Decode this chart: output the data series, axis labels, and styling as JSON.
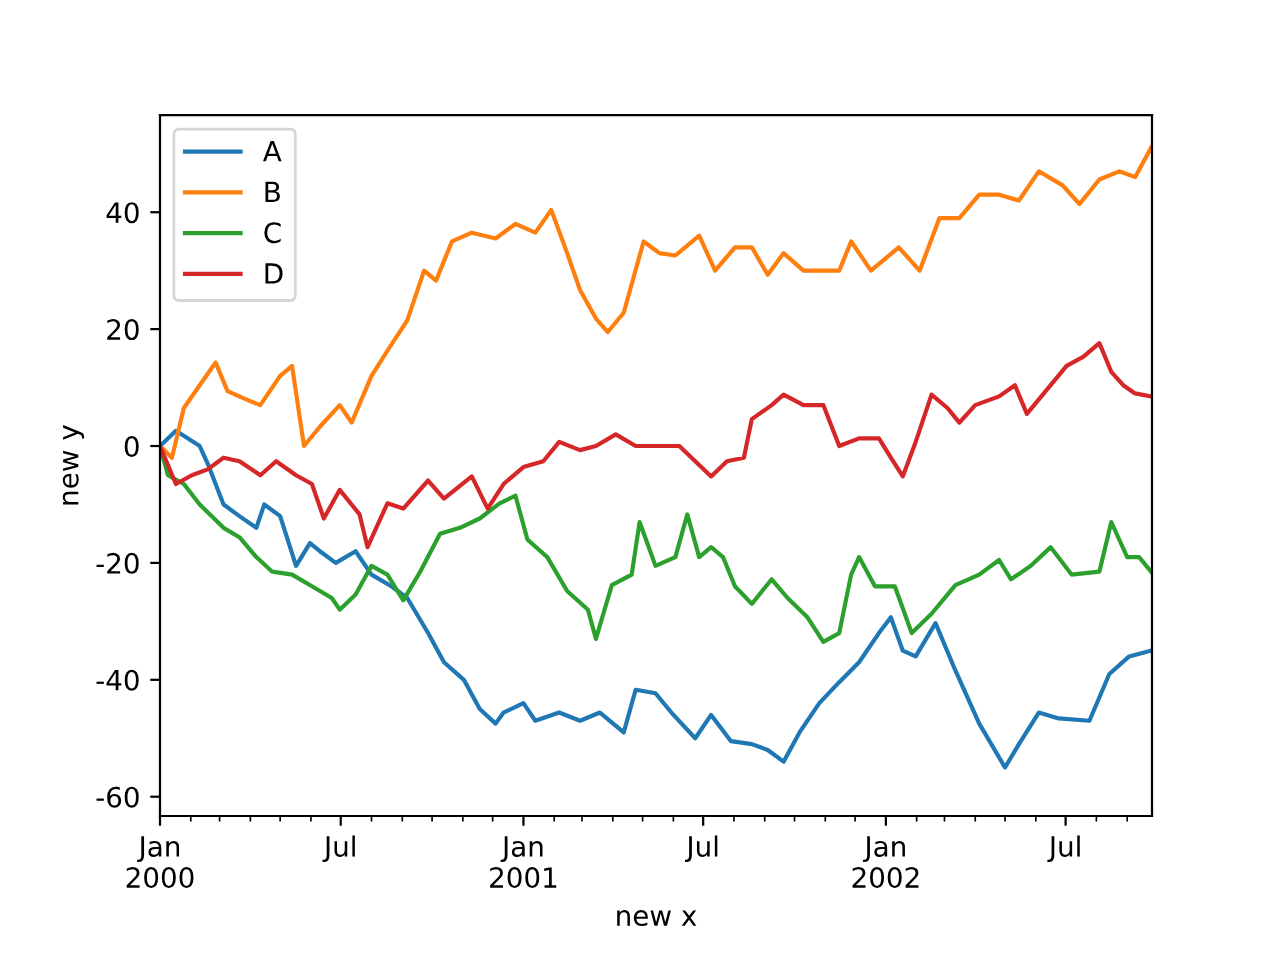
{
  "chart_data": {
    "type": "line",
    "xlabel": "new x",
    "ylabel": "new y",
    "legend": "top left",
    "grid": false,
    "xlim": [
      "2000-01-01",
      "2002-09-26"
    ],
    "ylim": [
      -63.3,
      56.6
    ],
    "yticks": [
      -60,
      -40,
      -20,
      0,
      20,
      40
    ],
    "xticks": [
      {
        "value": "2000-01-01",
        "label": "Jan\n2000"
      },
      {
        "value": "2000-02-01",
        "label": null
      },
      {
        "value": "2000-03-01",
        "label": null
      },
      {
        "value": "2000-04-01",
        "label": null
      },
      {
        "value": "2000-05-01",
        "label": null
      },
      {
        "value": "2000-06-01",
        "label": null
      },
      {
        "value": "2000-07-01",
        "label": "Jul"
      },
      {
        "value": "2000-08-01",
        "label": null
      },
      {
        "value": "2000-09-01",
        "label": null
      },
      {
        "value": "2000-10-01",
        "label": null
      },
      {
        "value": "2000-11-01",
        "label": null
      },
      {
        "value": "2000-12-01",
        "label": null
      },
      {
        "value": "2001-01-01",
        "label": "Jan\n2001"
      },
      {
        "value": "2001-02-01",
        "label": null
      },
      {
        "value": "2001-03-01",
        "label": null
      },
      {
        "value": "2001-04-01",
        "label": null
      },
      {
        "value": "2001-05-01",
        "label": null
      },
      {
        "value": "2001-06-01",
        "label": null
      },
      {
        "value": "2001-07-01",
        "label": "Jul"
      },
      {
        "value": "2001-08-01",
        "label": null
      },
      {
        "value": "2001-09-01",
        "label": null
      },
      {
        "value": "2001-10-01",
        "label": null
      },
      {
        "value": "2001-11-01",
        "label": null
      },
      {
        "value": "2001-12-01",
        "label": null
      },
      {
        "value": "2002-01-01",
        "label": "Jan\n2002"
      },
      {
        "value": "2002-02-01",
        "label": null
      },
      {
        "value": "2002-03-01",
        "label": null
      },
      {
        "value": "2002-04-01",
        "label": null
      },
      {
        "value": "2002-05-01",
        "label": null
      },
      {
        "value": "2002-06-01",
        "label": null
      },
      {
        "value": "2002-07-01",
        "label": "Jul"
      },
      {
        "value": "2002-08-01",
        "label": null
      },
      {
        "value": "2002-09-01",
        "label": null
      }
    ],
    "series": [
      {
        "name": "A",
        "color": "#1f77b4",
        "x": [
          "2000-01-01",
          "2000-01-17",
          "2000-02-10",
          "2000-02-18",
          "2000-03-05",
          "2000-03-21",
          "2000-04-07",
          "2000-04-15",
          "2000-05-01",
          "2000-05-17",
          "2000-05-31",
          "2000-06-10",
          "2000-06-26",
          "2000-07-16",
          "2000-08-01",
          "2000-08-21",
          "2000-09-06",
          "2000-09-27",
          "2000-10-13",
          "2000-11-02",
          "2000-11-18",
          "2000-12-04",
          "2000-12-12",
          "2001-01-01",
          "2001-01-13",
          "2001-02-06",
          "2001-02-27",
          "2001-03-19",
          "2001-04-12",
          "2001-04-24",
          "2001-05-14",
          "2001-05-30",
          "2001-06-23",
          "2001-07-09",
          "2001-07-29",
          "2001-08-19",
          "2001-09-04",
          "2001-09-20",
          "2001-10-06",
          "2001-10-26",
          "2001-11-15",
          "2001-12-05",
          "2001-12-25",
          "2002-01-06",
          "2002-01-18",
          "2002-01-31",
          "2002-02-20",
          "2002-03-12",
          "2002-04-05",
          "2002-05-01",
          "2002-05-15",
          "2002-06-04",
          "2002-06-24",
          "2002-07-25",
          "2002-08-14",
          "2002-09-03",
          "2002-09-25"
        ],
        "values": [
          0,
          2.6,
          0,
          -3,
          -10,
          -12,
          -14,
          -10,
          -12,
          -20.5,
          -16.6,
          -18,
          -20,
          -18,
          -22,
          -24,
          -26,
          -32,
          -37,
          -40,
          -45,
          -47.5,
          -45.6,
          -44,
          -47,
          -45.6,
          -47,
          -45.6,
          -49,
          -41.7,
          -42.3,
          -45.6,
          -50,
          -46,
          -50.5,
          -51,
          -52,
          -54,
          -49,
          -44,
          -40.4,
          -37,
          -32,
          -29.3,
          -35,
          -36,
          -30.3,
          -38.4,
          -47.5,
          -55,
          -51,
          -45.6,
          -46.6,
          -47,
          -39,
          -36,
          -35
        ]
      },
      {
        "name": "B",
        "color": "#ff7f0e",
        "x": [
          "2000-01-01",
          "2000-01-13",
          "2000-01-25",
          "2000-02-10",
          "2000-02-26",
          "2000-03-09",
          "2000-03-30",
          "2000-04-11",
          "2000-05-01",
          "2000-05-13",
          "2000-05-25",
          "2000-06-10",
          "2000-06-30",
          "2000-07-12",
          "2000-08-01",
          "2000-08-17",
          "2000-09-06",
          "2000-09-23",
          "2000-10-05",
          "2000-10-21",
          "2000-11-10",
          "2000-12-04",
          "2000-12-24",
          "2001-01-13",
          "2001-01-29",
          "2001-02-14",
          "2001-02-27",
          "2001-03-15",
          "2001-03-27",
          "2001-04-12",
          "2001-05-02",
          "2001-05-18",
          "2001-06-03",
          "2001-06-27",
          "2001-07-13",
          "2001-08-02",
          "2001-08-19",
          "2001-09-04",
          "2001-09-20",
          "2001-10-10",
          "2001-10-26",
          "2001-11-15",
          "2001-11-27",
          "2001-12-17",
          "2002-01-14",
          "2002-02-04",
          "2002-02-24",
          "2002-03-16",
          "2002-04-05",
          "2002-04-25",
          "2002-05-15",
          "2002-06-04",
          "2002-06-28",
          "2002-07-15",
          "2002-08-04",
          "2002-08-24",
          "2002-09-09",
          "2002-09-25"
        ],
        "values": [
          0,
          -2,
          6.5,
          10.4,
          14.3,
          9.4,
          7.8,
          7,
          12,
          13.7,
          0,
          3.3,
          7,
          4,
          12,
          16.3,
          21.5,
          30,
          28.3,
          35,
          36.5,
          35.5,
          38,
          36.5,
          40.4,
          33,
          26.7,
          21.8,
          19.5,
          22.8,
          35,
          33,
          32.6,
          36,
          30,
          34,
          34,
          29.3,
          33,
          30,
          30,
          30,
          35,
          30,
          34,
          30,
          39,
          39,
          43,
          43,
          42,
          47,
          44.6,
          41.4,
          45.6,
          47,
          46,
          51
        ]
      },
      {
        "name": "C",
        "color": "#2ca02c",
        "x": [
          "2000-01-01",
          "2000-01-09",
          "2000-01-25",
          "2000-02-10",
          "2000-03-05",
          "2000-03-21",
          "2000-04-07",
          "2000-04-23",
          "2000-05-13",
          "2000-06-02",
          "2000-06-22",
          "2000-06-30",
          "2000-07-16",
          "2000-08-01",
          "2000-08-17",
          "2000-09-02",
          "2000-09-19",
          "2000-10-09",
          "2000-10-29",
          "2000-11-18",
          "2000-12-08",
          "2000-12-24",
          "2001-01-05",
          "2001-01-25",
          "2001-02-14",
          "2001-03-07",
          "2001-03-15",
          "2001-03-31",
          "2001-04-20",
          "2001-04-28",
          "2001-05-14",
          "2001-06-03",
          "2001-06-15",
          "2001-06-27",
          "2001-07-09",
          "2001-07-21",
          "2001-08-02",
          "2001-08-19",
          "2001-09-08",
          "2001-09-24",
          "2001-10-14",
          "2001-10-30",
          "2001-11-15",
          "2001-11-27",
          "2001-12-05",
          "2001-12-21",
          "2002-01-10",
          "2002-01-27",
          "2002-02-16",
          "2002-03-12",
          "2002-04-05",
          "2002-04-25",
          "2002-05-07",
          "2002-05-27",
          "2002-06-16",
          "2002-07-07",
          "2002-08-04",
          "2002-08-16",
          "2002-09-01",
          "2002-09-13",
          "2002-09-25"
        ],
        "values": [
          0,
          -5,
          -6.5,
          -10,
          -14,
          -15.6,
          -19,
          -21.5,
          -22,
          -24,
          -26,
          -28,
          -25.4,
          -20.5,
          -22,
          -26.4,
          -21.5,
          -15,
          -14,
          -12.4,
          -9.8,
          -8.5,
          -16,
          -19,
          -24.8,
          -28,
          -33,
          -23.8,
          -22,
          -13,
          -20.5,
          -19,
          -11.7,
          -19,
          -17.3,
          -19,
          -24,
          -27,
          -22.8,
          -26,
          -29.3,
          -33.5,
          -32,
          -22,
          -19,
          -24,
          -24,
          -32,
          -28.7,
          -23.8,
          -22,
          -19.5,
          -22.8,
          -20.5,
          -17.3,
          -22,
          -21.5,
          -13,
          -19,
          -19,
          -21.5
        ]
      },
      {
        "name": "D",
        "color": "#d62728",
        "x": [
          "2000-01-01",
          "2000-01-17",
          "2000-02-02",
          "2000-02-18",
          "2000-03-05",
          "2000-03-21",
          "2000-04-11",
          "2000-04-27",
          "2000-05-17",
          "2000-06-02",
          "2000-06-14",
          "2000-06-30",
          "2000-07-20",
          "2000-07-28",
          "2000-08-17",
          "2000-09-02",
          "2000-09-27",
          "2000-10-13",
          "2000-11-10",
          "2000-11-26",
          "2000-12-12",
          "2001-01-01",
          "2001-01-21",
          "2001-02-06",
          "2001-02-27",
          "2001-03-15",
          "2001-04-04",
          "2001-04-24",
          "2001-05-14",
          "2001-06-07",
          "2001-06-23",
          "2001-07-09",
          "2001-07-25",
          "2001-08-11",
          "2001-08-19",
          "2001-09-08",
          "2001-09-20",
          "2001-10-10",
          "2001-10-30",
          "2001-11-15",
          "2001-12-05",
          "2001-12-25",
          "2002-01-06",
          "2002-01-18",
          "2002-01-31",
          "2002-02-16",
          "2002-03-04",
          "2002-03-16",
          "2002-04-01",
          "2002-04-25",
          "2002-05-11",
          "2002-05-23",
          "2002-06-08",
          "2002-07-02",
          "2002-07-19",
          "2002-08-04",
          "2002-08-16",
          "2002-08-28",
          "2002-09-09",
          "2002-09-25"
        ],
        "values": [
          0,
          -6.5,
          -5,
          -4,
          -2,
          -2.6,
          -5,
          -2.6,
          -5,
          -6.5,
          -12.4,
          -7.5,
          -11.7,
          -17.3,
          -9.8,
          -10.7,
          -5.9,
          -9,
          -5.2,
          -10.7,
          -6.5,
          -3.6,
          -2.6,
          0.7,
          -0.7,
          0,
          2,
          0,
          0,
          0,
          -2.6,
          -5.2,
          -2.6,
          -2,
          4.6,
          7,
          8.8,
          7,
          7,
          0,
          1.3,
          1.3,
          -2,
          -5.2,
          0.7,
          8.8,
          6.5,
          4,
          7,
          8.5,
          10.4,
          5.5,
          8.8,
          13.7,
          15.3,
          17.6,
          12.7,
          10.4,
          9,
          8.5
        ]
      }
    ]
  }
}
